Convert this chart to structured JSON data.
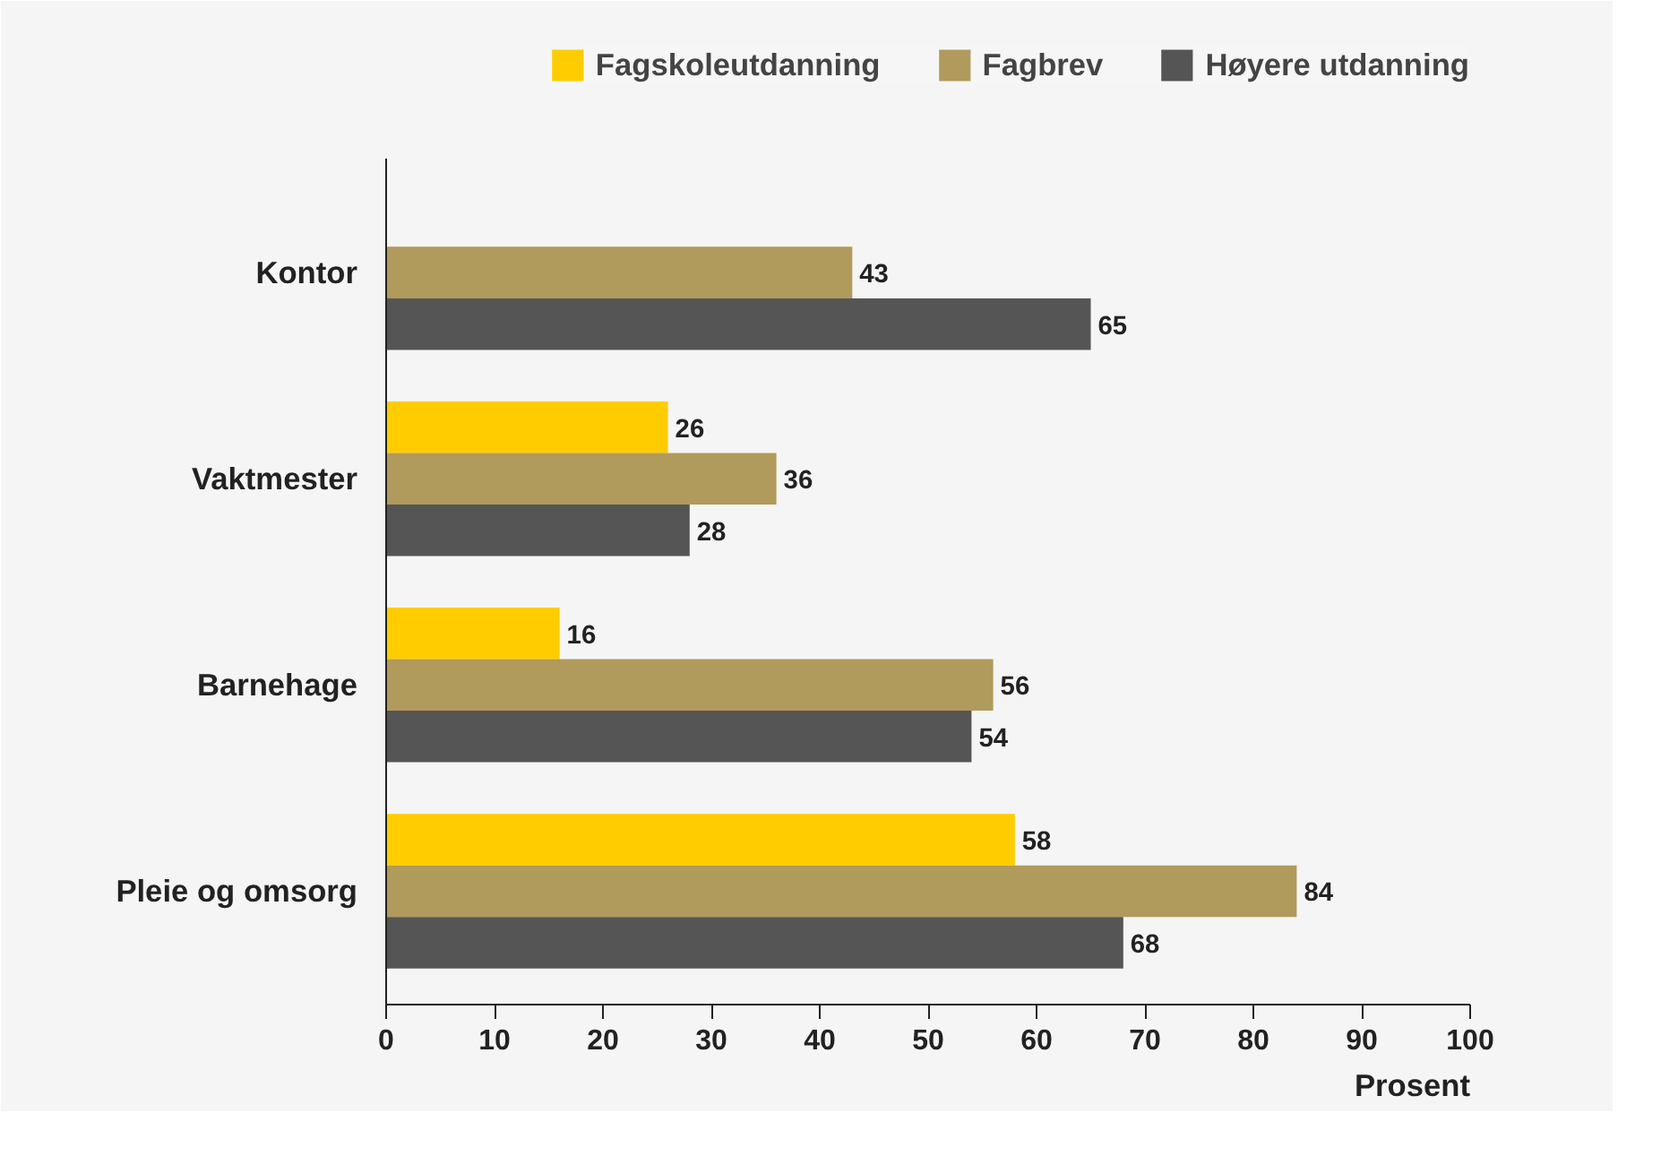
{
  "chart_data": {
    "type": "bar",
    "orientation": "horizontal",
    "categories": [
      "Kontor",
      "Vaktmester",
      "Barnehage",
      "Pleie og omsorg"
    ],
    "series": [
      {
        "name": "Fagskoleutdanning",
        "color": "#ffcc00",
        "values": [
          null,
          26,
          16,
          58
        ]
      },
      {
        "name": "Fagbrev",
        "color": "#b09a5c",
        "values": [
          43,
          36,
          56,
          84
        ]
      },
      {
        "name": "Høyere utdanning",
        "color": "#555555",
        "values": [
          65,
          28,
          54,
          68
        ]
      }
    ],
    "xlabel": "Prosent",
    "xlim": [
      0,
      100
    ],
    "xticks": [
      0,
      10,
      20,
      30,
      40,
      50,
      60,
      70,
      80,
      90,
      100
    ],
    "data_labels": true,
    "grid": false,
    "legend": "top"
  }
}
